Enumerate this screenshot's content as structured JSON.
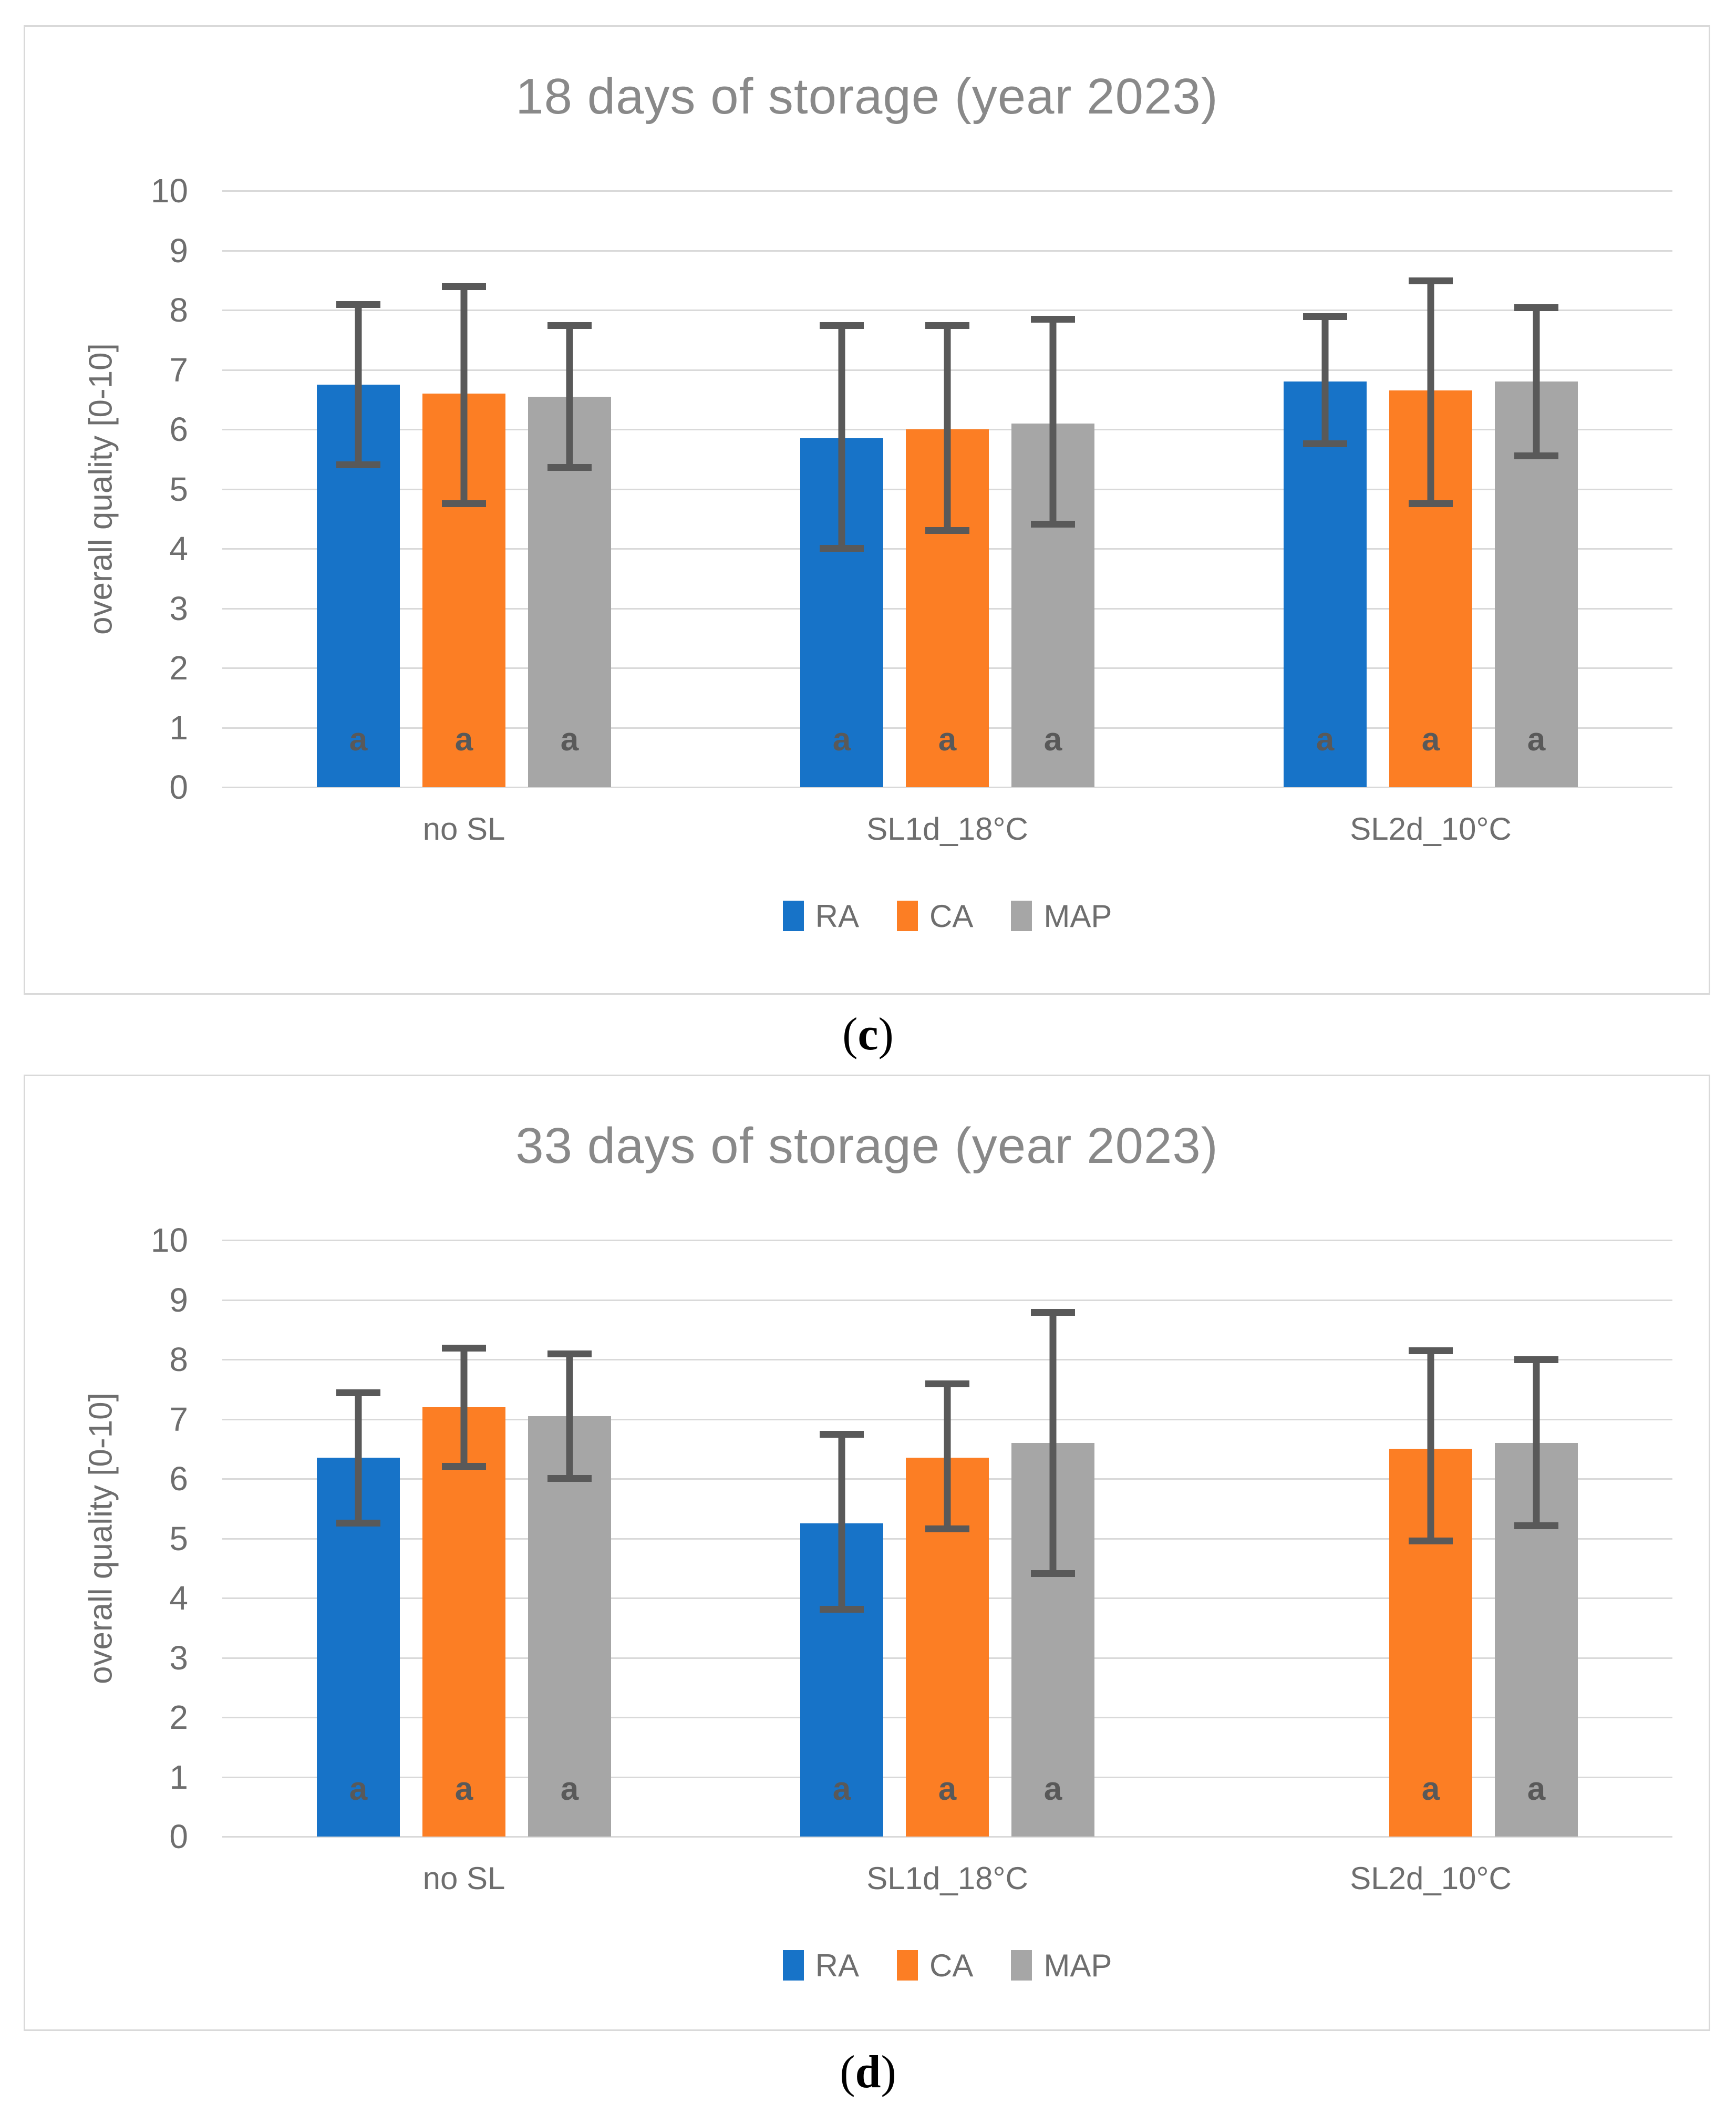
{
  "colors": {
    "ra_blue": "#1773C8",
    "ca_orange": "#FC7E24",
    "map_gray": "#A6A6A6",
    "error_bar": "#595959",
    "gridline": "#D9D9D9",
    "panel_border": "#D9D9D9",
    "title_text": "#898989",
    "axis_text": "#6E6E6E",
    "significance_letter": "#595959"
  },
  "captions": [
    {
      "open": "(",
      "letter": "c",
      "close": ")"
    },
    {
      "open": "(",
      "letter": "d",
      "close": ")"
    }
  ],
  "chart_data": [
    {
      "type": "bar",
      "title": "18 days of storage (year 2023)",
      "xlabel": "",
      "ylabel": "overall quality [0-10]",
      "ylim": [
        0,
        10
      ],
      "tick_step": 1,
      "tick_labels": [
        "10",
        "9",
        "8",
        "7",
        "6",
        "5",
        "4",
        "3",
        "2",
        "1",
        "0"
      ],
      "grid": true,
      "legend_position": "bottom",
      "categories": [
        "no SL",
        "SL1d_18°C",
        "SL2d_10°C"
      ],
      "series": [
        {
          "name": "RA",
          "color": "#1773C8",
          "values": [
            6.75,
            5.85,
            6.8
          ],
          "err_low": [
            5.35,
            3.95,
            5.7
          ],
          "err_high": [
            8.15,
            7.8,
            7.95
          ],
          "letters": [
            "a",
            "a",
            "a"
          ]
        },
        {
          "name": "CA",
          "color": "#FC7E24",
          "values": [
            6.6,
            6.0,
            6.65
          ],
          "err_low": [
            4.7,
            4.25,
            4.7
          ],
          "err_high": [
            8.45,
            7.8,
            8.55
          ],
          "letters": [
            "a",
            "a",
            "a"
          ]
        },
        {
          "name": "MAP",
          "color": "#A6A6A6",
          "values": [
            6.55,
            6.1,
            6.8
          ],
          "err_low": [
            5.3,
            4.35,
            5.5
          ],
          "err_high": [
            7.8,
            7.9,
            8.1
          ],
          "letters": [
            "a",
            "a",
            "a"
          ]
        }
      ]
    },
    {
      "type": "bar",
      "title": "33 days of storage (year 2023)",
      "xlabel": "",
      "ylabel": "overall quality [0-10]",
      "ylim": [
        0,
        10
      ],
      "tick_step": 1,
      "tick_labels": [
        "10",
        "9",
        "8",
        "7",
        "6",
        "5",
        "4",
        "3",
        "2",
        "1",
        "0"
      ],
      "grid": true,
      "legend_position": "bottom",
      "categories": [
        "no SL",
        "SL1d_18°C",
        "SL2d_10°C"
      ],
      "series": [
        {
          "name": "RA",
          "color": "#1773C8",
          "values": [
            6.35,
            5.25,
            null
          ],
          "err_low": [
            5.2,
            3.75,
            null
          ],
          "err_high": [
            7.5,
            6.8,
            null
          ],
          "letters": [
            "a",
            "a",
            null
          ]
        },
        {
          "name": "CA",
          "color": "#FC7E24",
          "values": [
            7.2,
            6.35,
            6.5
          ],
          "err_low": [
            6.15,
            5.1,
            4.9
          ],
          "err_high": [
            8.25,
            7.65,
            8.2
          ],
          "letters": [
            "a",
            "a",
            "a"
          ]
        },
        {
          "name": "MAP",
          "color": "#A6A6A6",
          "values": [
            7.05,
            6.6,
            6.6
          ],
          "err_low": [
            5.95,
            4.35,
            5.15
          ],
          "err_high": [
            8.15,
            8.85,
            8.05
          ],
          "letters": [
            "a",
            "a",
            "a"
          ]
        }
      ]
    }
  ]
}
